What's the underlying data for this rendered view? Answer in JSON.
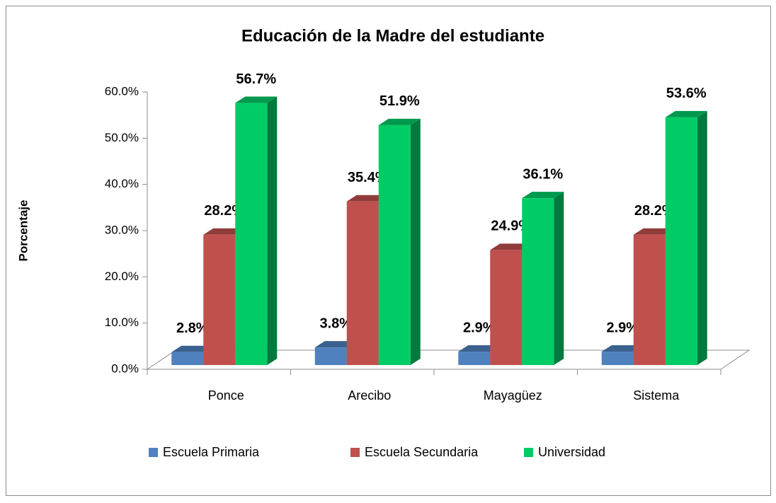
{
  "chart_data": {
    "type": "bar3d",
    "title": "Educación de la Madre del estudiante",
    "ylabel": "Porcentaje",
    "categories": [
      "Ponce",
      "Arecibo",
      "Mayagüez",
      "Sistema"
    ],
    "series": [
      {
        "name": "Escuela Primaria",
        "color": "#4f81bd",
        "values": [
          2.8,
          3.8,
          2.9,
          2.9
        ],
        "value_labels": [
          "2.8%",
          "3.8%",
          "2.9%",
          "2.9%"
        ]
      },
      {
        "name": "Escuela Secundaria",
        "color": "#c0504d",
        "values": [
          28.2,
          35.4,
          24.9,
          28.2
        ],
        "value_labels": [
          "28.2%",
          "35.4%",
          "24.9%",
          "28.2%"
        ]
      },
      {
        "name": "Universidad",
        "color": "#00cc66",
        "values": [
          56.7,
          51.9,
          36.1,
          53.6
        ],
        "value_labels": [
          "56.7%",
          "51.9%",
          "36.1%",
          "53.6%"
        ]
      }
    ],
    "ylim": [
      0,
      60
    ],
    "yticks": [
      {
        "value": 0,
        "label": "0.0%"
      },
      {
        "value": 10,
        "label": "10.0%"
      },
      {
        "value": 20,
        "label": "20.0%"
      },
      {
        "value": 30,
        "label": "30.0%"
      },
      {
        "value": 40,
        "label": "40.0%"
      },
      {
        "value": 50,
        "label": "50.0%"
      },
      {
        "value": 60,
        "label": "60.0%"
      }
    ],
    "legend": "bottom"
  }
}
